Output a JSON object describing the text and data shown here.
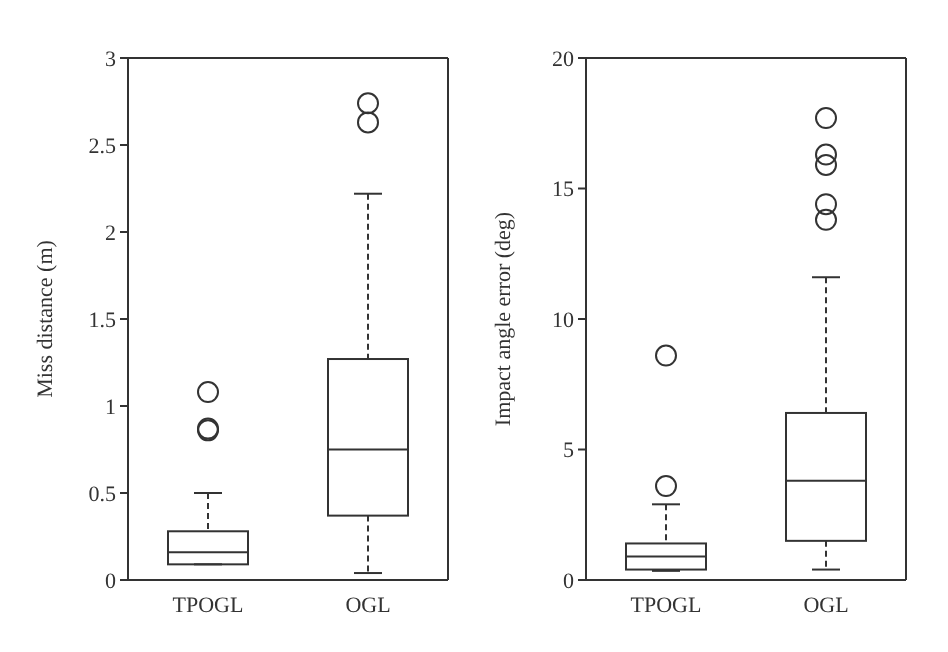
{
  "chart_data": [
    {
      "type": "box",
      "ylabel": "Miss distance (m)",
      "categories": [
        "TPOGL",
        "OGL"
      ],
      "ylim": [
        0,
        3
      ],
      "yticks": [
        0,
        0.5,
        1,
        1.5,
        2,
        2.5,
        3
      ],
      "marker": "circle",
      "boxes": [
        {
          "low": 0.09,
          "q1": 0.09,
          "median": 0.16,
          "q3": 0.28,
          "high": 0.5,
          "outliers": [
            0.86,
            0.87,
            1.08
          ]
        },
        {
          "low": 0.04,
          "q1": 0.37,
          "median": 0.75,
          "q3": 1.27,
          "high": 2.22,
          "outliers": [
            2.63,
            2.74
          ]
        }
      ]
    },
    {
      "type": "box",
      "ylabel": "Impact angle error (deg)",
      "categories": [
        "TPOGL",
        "OGL"
      ],
      "ylim": [
        0,
        20
      ],
      "yticks": [
        0,
        5,
        10,
        15,
        20
      ],
      "marker": "circle",
      "boxes": [
        {
          "low": 0.35,
          "q1": 0.4,
          "median": 0.9,
          "q3": 1.4,
          "high": 2.9,
          "outliers": [
            3.6,
            8.6
          ]
        },
        {
          "low": 0.4,
          "q1": 1.5,
          "median": 3.8,
          "q3": 6.4,
          "high": 11.6,
          "outliers": [
            13.8,
            14.4,
            15.9,
            16.3,
            17.7
          ]
        }
      ]
    }
  ]
}
